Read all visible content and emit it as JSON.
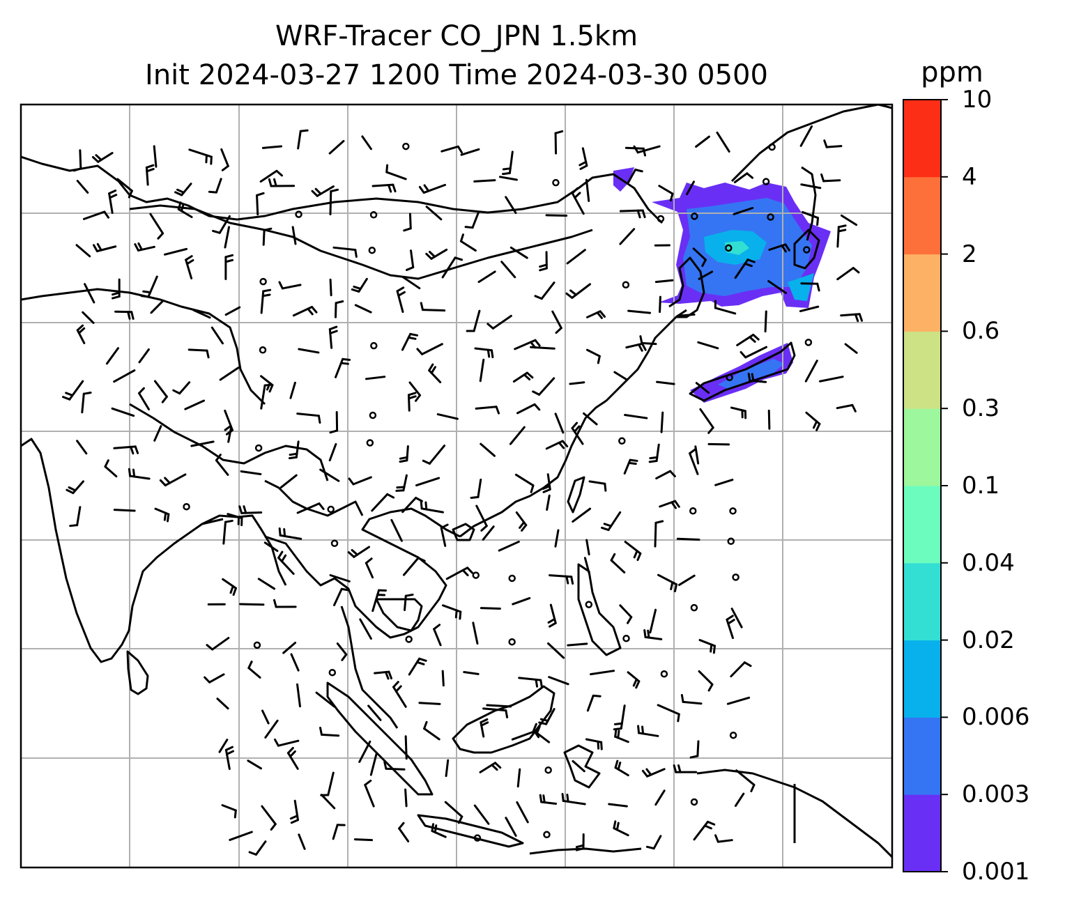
{
  "title": {
    "line1": "WRF-Tracer CO_JPN 1.5km",
    "line2": "Init 2024-03-27 1200 Time 2024-03-30 0500"
  },
  "colorbar": {
    "unit": "ppm",
    "ticks": [
      "0.001",
      "0.003",
      "0.006",
      "0.02",
      "0.04",
      "0.1",
      "0.3",
      "0.6",
      "2",
      "4",
      "10"
    ],
    "colors": [
      "#6a2ff5",
      "#3575f3",
      "#08b1eb",
      "#33dfd3",
      "#6cfdbe",
      "#9df79c",
      "#cde185",
      "#fdb164",
      "#fd703a",
      "#fd2e16"
    ]
  },
  "map": {
    "gridlines": true,
    "plume_colors": {
      "low": "#6a2ff5",
      "mid": "#3575f3",
      "high": "#08b1eb",
      "peak": "#33dfd3"
    }
  }
}
